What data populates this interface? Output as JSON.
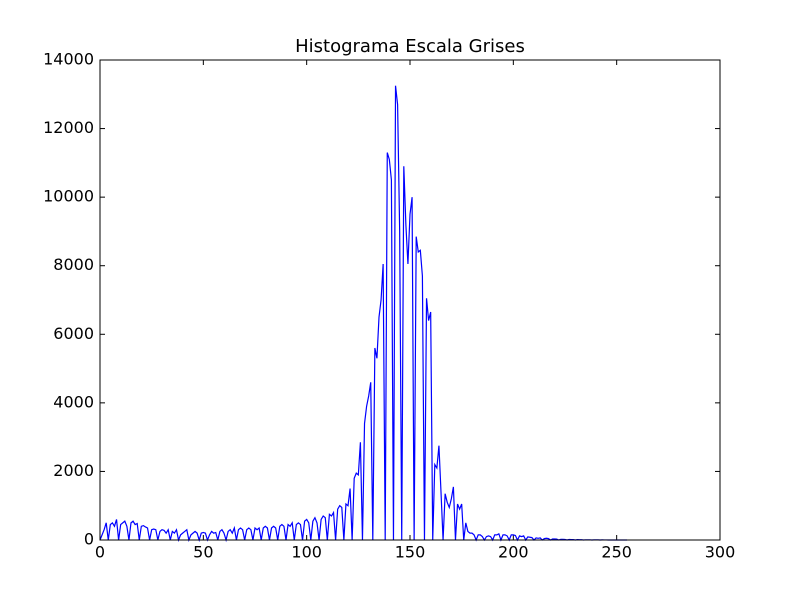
{
  "chart_data": {
    "type": "line",
    "title": "Histograma Escala Grises",
    "x": [
      0,
      1,
      2,
      3,
      4,
      5,
      6,
      7,
      8,
      9,
      10,
      11,
      12,
      13,
      14,
      15,
      16,
      17,
      18,
      19,
      20,
      21,
      22,
      23,
      24,
      25,
      26,
      27,
      28,
      29,
      30,
      31,
      32,
      33,
      34,
      35,
      36,
      37,
      38,
      39,
      40,
      41,
      42,
      43,
      44,
      45,
      46,
      47,
      48,
      49,
      50,
      51,
      52,
      53,
      54,
      55,
      56,
      57,
      58,
      59,
      60,
      61,
      62,
      63,
      64,
      65,
      66,
      67,
      68,
      69,
      70,
      71,
      72,
      73,
      74,
      75,
      76,
      77,
      78,
      79,
      80,
      81,
      82,
      83,
      84,
      85,
      86,
      87,
      88,
      89,
      90,
      91,
      92,
      93,
      94,
      95,
      96,
      97,
      98,
      99,
      100,
      101,
      102,
      103,
      104,
      105,
      106,
      107,
      108,
      109,
      110,
      111,
      112,
      113,
      114,
      115,
      116,
      117,
      118,
      119,
      120,
      121,
      122,
      123,
      124,
      125,
      126,
      127,
      128,
      129,
      130,
      131,
      132,
      133,
      134,
      135,
      136,
      137,
      138,
      139,
      140,
      141,
      142,
      143,
      144,
      145,
      146,
      147,
      148,
      149,
      150,
      151,
      152,
      153,
      154,
      155,
      156,
      157,
      158,
      159,
      160,
      161,
      162,
      163,
      164,
      165,
      166,
      167,
      168,
      169,
      170,
      171,
      172,
      173,
      174,
      175,
      176,
      177,
      178,
      179,
      180,
      181,
      182,
      183,
      184,
      185,
      186,
      187,
      188,
      189,
      190,
      191,
      192,
      193,
      194,
      195,
      196,
      197,
      198,
      199,
      200,
      201,
      202,
      203,
      204,
      205,
      206,
      207,
      208,
      209,
      210,
      211,
      212,
      213,
      214,
      215,
      216,
      217,
      218,
      219,
      220,
      221,
      222,
      223,
      224,
      225,
      226,
      227,
      228,
      229,
      230,
      231,
      232,
      233,
      234,
      235,
      236,
      237,
      238,
      239,
      240,
      241,
      242,
      243,
      244,
      245,
      246,
      247,
      248,
      249,
      250,
      251,
      252,
      253,
      254,
      255
    ],
    "values": [
      0,
      150,
      300,
      500,
      0,
      450,
      500,
      400,
      600,
      0,
      450,
      500,
      550,
      400,
      0,
      500,
      550,
      450,
      480,
      0,
      400,
      420,
      380,
      350,
      0,
      300,
      320,
      300,
      0,
      250,
      300,
      280,
      200,
      300,
      0,
      250,
      200,
      300,
      0,
      150,
      200,
      250,
      300,
      0,
      150,
      200,
      250,
      200,
      0,
      200,
      220,
      200,
      0,
      150,
      250,
      200,
      220,
      0,
      250,
      300,
      200,
      0,
      250,
      300,
      200,
      350,
      0,
      300,
      350,
      300,
      0,
      300,
      350,
      300,
      0,
      350,
      300,
      350,
      0,
      350,
      400,
      350,
      0,
      350,
      400,
      350,
      0,
      400,
      450,
      400,
      0,
      450,
      400,
      500,
      0,
      450,
      500,
      450,
      0,
      550,
      600,
      500,
      0,
      550,
      650,
      500,
      0,
      600,
      700,
      650,
      0,
      750,
      700,
      800,
      0,
      900,
      1000,
      950,
      0,
      1050,
      1000,
      1500,
      0,
      1800,
      1950,
      1900,
      2850,
      0,
      3400,
      3900,
      4200,
      4600,
      0,
      5600,
      5300,
      6500,
      7000,
      8050,
      0,
      11300,
      11100,
      10500,
      0,
      13250,
      12700,
      9000,
      0,
      10900,
      9200,
      8050,
      9500,
      10000,
      0,
      8850,
      8400,
      8450,
      7700,
      0,
      7050,
      6400,
      6650,
      0,
      2200,
      2100,
      2750,
      1400,
      0,
      1350,
      1100,
      950,
      1200,
      1550,
      0,
      1050,
      900,
      1050,
      0,
      500,
      250,
      200,
      200,
      150,
      0,
      150,
      150,
      100,
      0,
      100,
      120,
      100,
      0,
      150,
      150,
      180,
      0,
      150,
      150,
      120,
      0,
      150,
      150,
      130,
      0,
      120,
      100,
      120,
      0,
      90,
      80,
      70,
      0,
      60,
      50,
      60,
      0,
      40,
      50,
      40,
      0,
      30,
      30,
      25,
      0,
      20,
      20,
      15,
      0,
      15,
      12,
      10,
      0,
      10,
      8,
      8,
      0,
      6,
      5,
      5,
      0,
      4,
      4,
      3,
      0,
      3,
      2,
      2,
      0,
      2,
      1,
      1,
      0,
      1,
      1,
      1,
      0,
      0
    ],
    "color": "#0000ff",
    "xlim": [
      0,
      300
    ],
    "xticks": [
      0,
      50,
      100,
      150,
      200,
      250,
      300
    ],
    "ylim": [
      0,
      14000
    ],
    "yticks": [
      0,
      2000,
      4000,
      6000,
      8000,
      10000,
      12000,
      14000
    ],
    "grid": false
  }
}
